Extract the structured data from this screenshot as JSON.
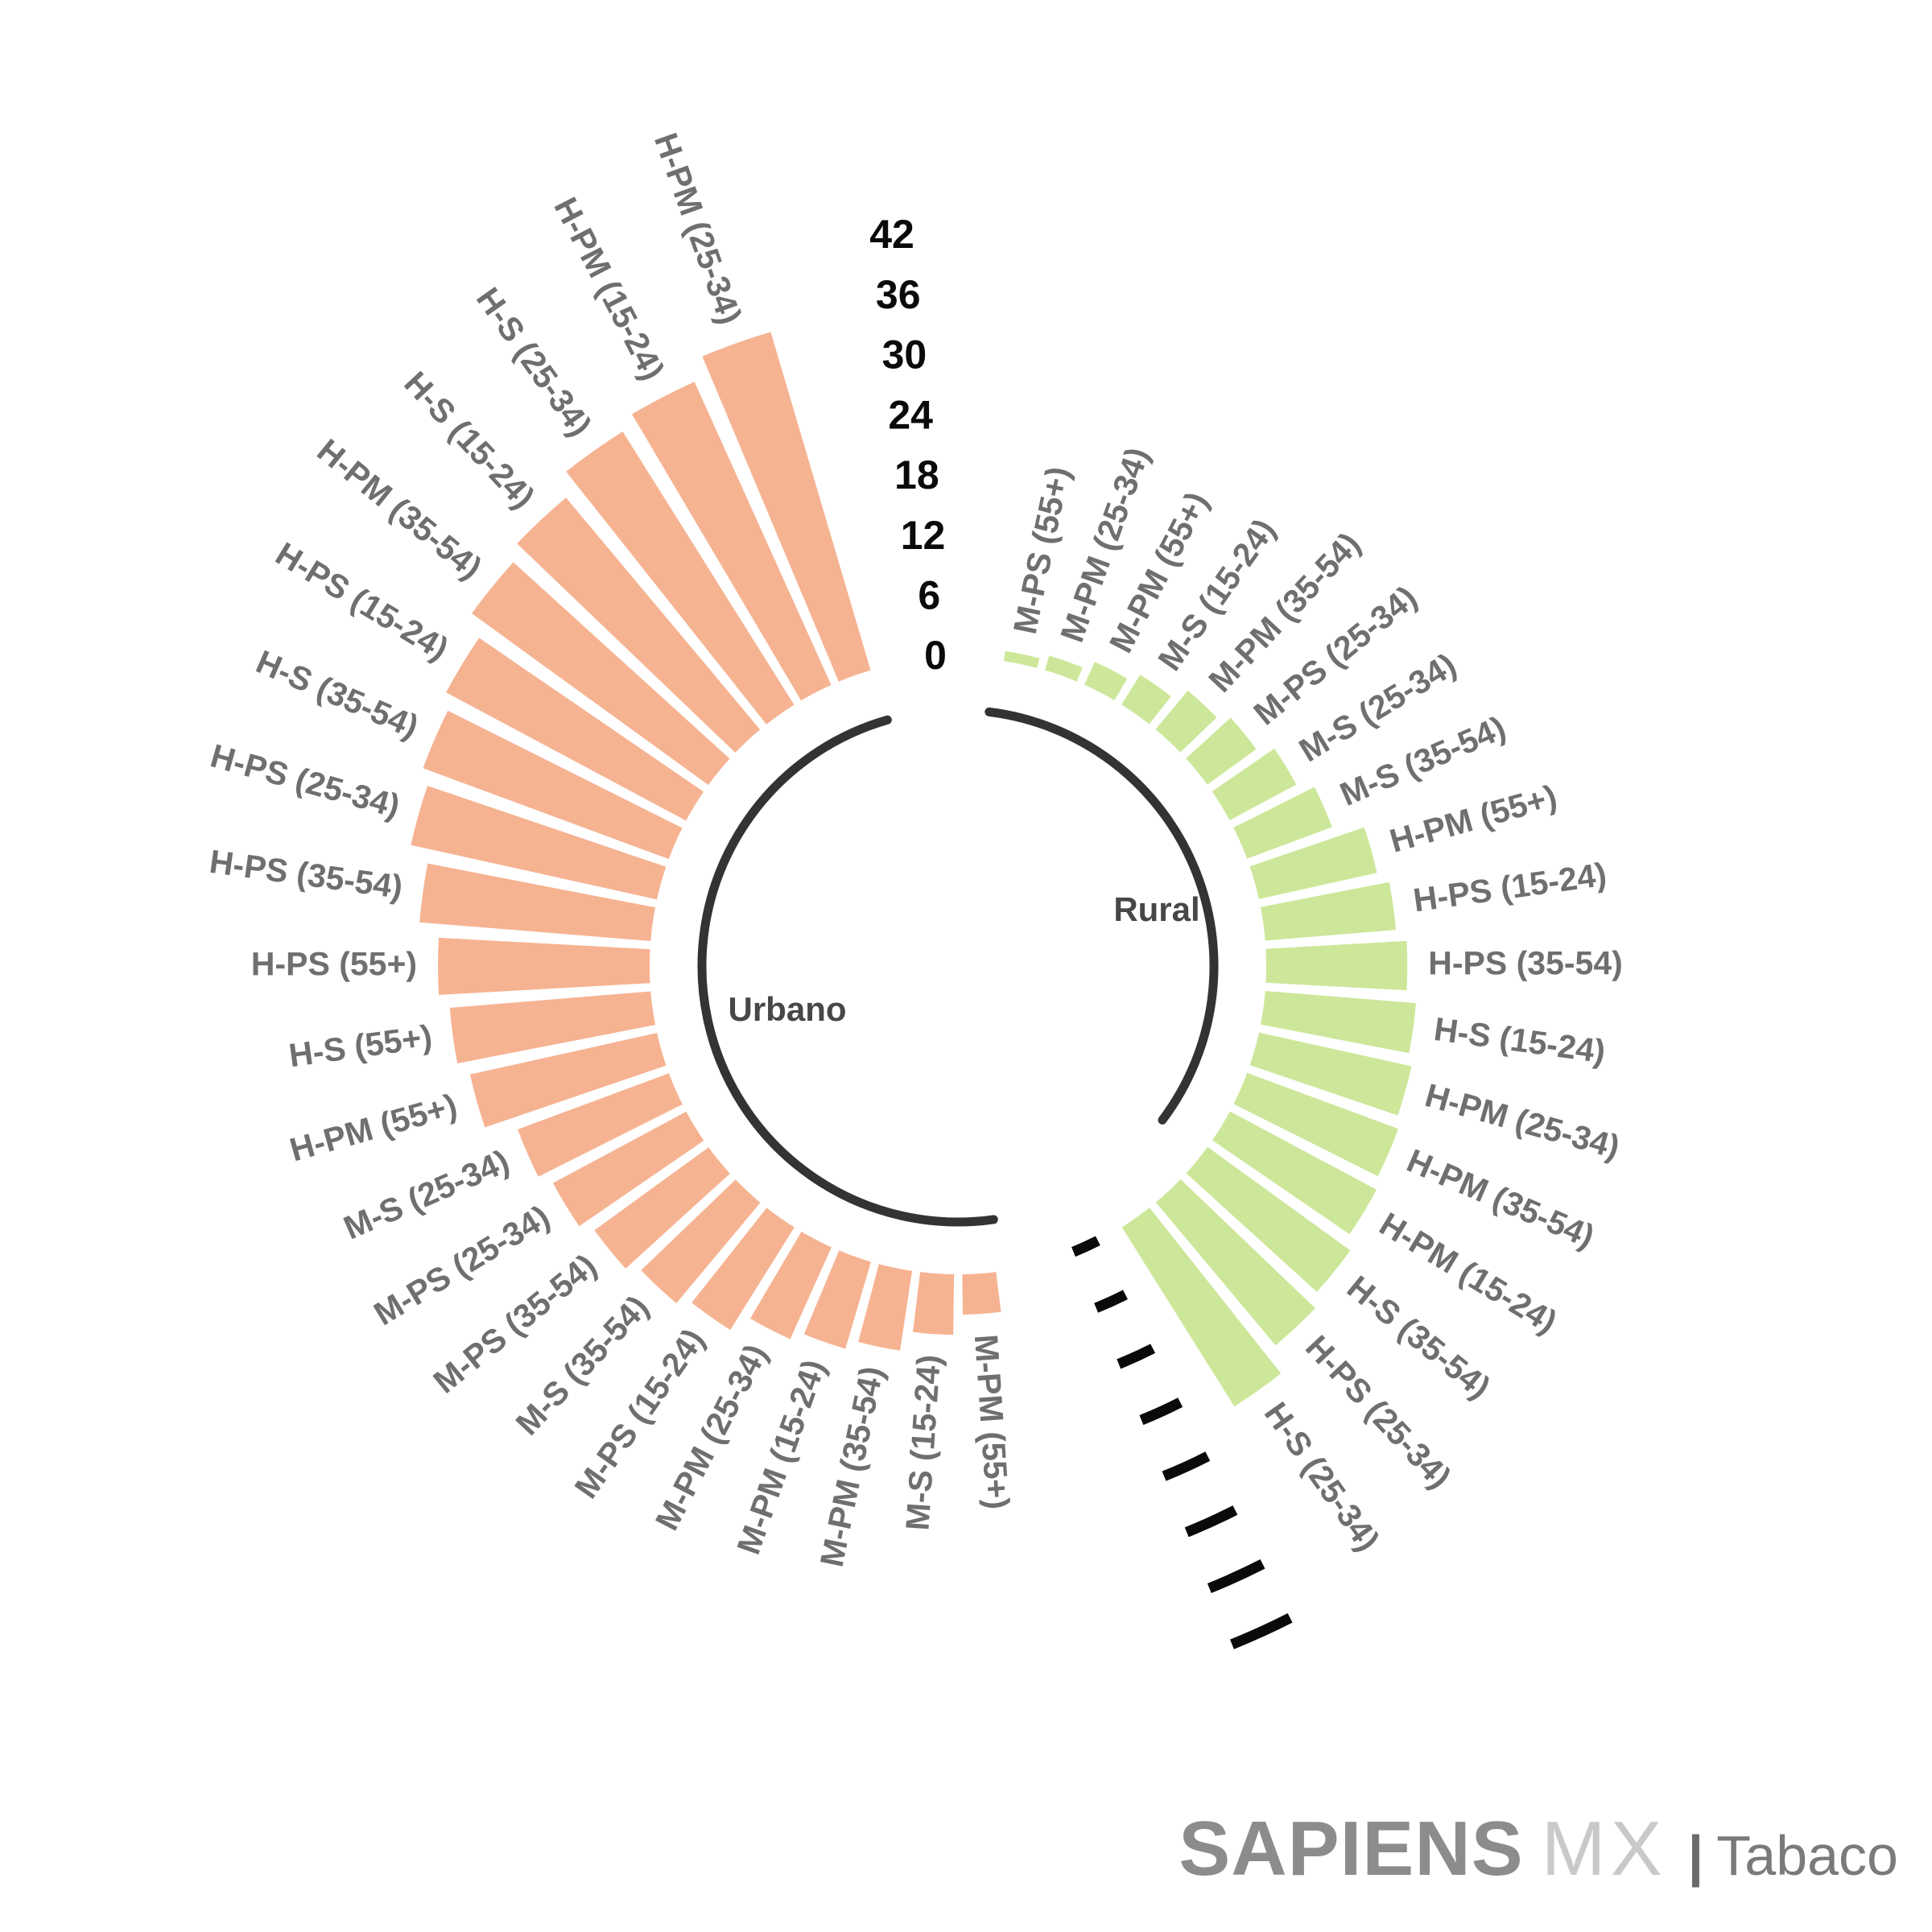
{
  "chart_data": {
    "type": "bar",
    "layout": "circular polar grouped barplot",
    "title": "",
    "radial_axis": {
      "ticks": [
        0,
        6,
        12,
        18,
        24,
        30,
        36,
        42
      ],
      "min": 0,
      "max": 42,
      "labels_position": "top gap between groups",
      "dash_ticks_position": "bottom gap between groups"
    },
    "groups": [
      {
        "name": "Urbano",
        "color": "#F6B392",
        "direction": "counterclockwise from top, sorted descending",
        "categories": [
          "H-PM (25-34)",
          "H-PM (15-24)",
          "H-S (25-34)",
          "H-S (15-24)",
          "H-PM (35-54)",
          "H-PS (15-24)",
          "H-S (35-54)",
          "H-PS (25-34)",
          "H-PS (35-54)",
          "H-PS (55+)",
          "H-S (55+)",
          "H-PM (55+)",
          "M-S (25-34)",
          "M-PS (25-34)",
          "M-PS (35-54)",
          "M-S (35-54)",
          "M-PS (15-24)",
          "M-PM (25-34)",
          "M-PM (15-24)",
          "M-PM (35-54)",
          "M-S (15-24)",
          "M-PM (55+)"
        ],
        "values": [
          35,
          33,
          32,
          30,
          29,
          27,
          26,
          25,
          23,
          21,
          20,
          19,
          16,
          15,
          14,
          13,
          12,
          10,
          9,
          8,
          6,
          4
        ]
      },
      {
        "name": "Rural",
        "color": "#CDE79A",
        "direction": "clockwise from top, sorted ascending",
        "categories": [
          "M-PS (55+)",
          "M-PM (25-34)",
          "M-PM (55+)",
          "M-S (15-24)",
          "M-PM (35-54)",
          "M-PS (25-34)",
          "M-S (25-34)",
          "M-S (35-54)",
          "H-PM (55+)",
          "H-PS (15-24)",
          "H-PS (35-54)",
          "H-S (15-24)",
          "H-PM (25-34)",
          "H-PM (35-54)",
          "H-PM (15-24)",
          "H-S (35-54)",
          "H-PS (25-34)",
          "H-S (25-34)"
        ],
        "values": [
          1,
          1.5,
          2.5,
          3.5,
          5,
          6,
          7.5,
          9,
          12,
          13,
          14,
          15,
          15.5,
          16,
          16.5,
          17.5,
          18.5,
          21
        ]
      }
    ],
    "styles": {
      "baseline_arc_color": "#333333",
      "dash_tick_color": "#0a0a0a",
      "bar_label_color": "#6f6f6f",
      "axis_number_color": "#0a0a0a"
    }
  },
  "branding": {
    "brand_bold": "SAPIENS",
    "brand_light": "MX",
    "separator": "|",
    "product": "Tabaco"
  }
}
